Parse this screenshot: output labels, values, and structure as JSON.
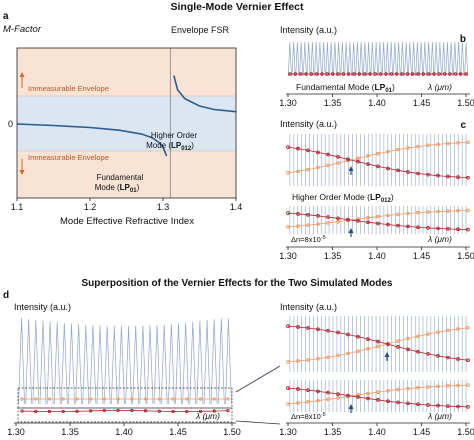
{
  "figure": {
    "title_top": "Single-Mode Vernier Effect",
    "title_bottom": "Superposition of the Vernier Effects for the Two Simulated Modes"
  },
  "colors": {
    "comb": "#8fa6cc",
    "envelope_line": "#2a5c8e",
    "red_curve": "#b0202b",
    "orange_curve": "#ee9c63",
    "shade_orange": "#f8e3d5",
    "shade_blue": "#dbe6f2",
    "arrow_orange": "#d2691e",
    "arrow_blue": "#1f4e8a"
  },
  "chart_data": [
    {
      "id": "a",
      "panel_label": "a",
      "type": "line",
      "ylabel": "M-Factor",
      "xlabel": "Mode Effective Refractive Index",
      "xlim": [
        1.1,
        1.4
      ],
      "x_ticks": [
        "1.1",
        "1.2",
        "1.3",
        "1.4"
      ],
      "y_ticks": [
        "0"
      ],
      "vline_x": 1.31,
      "vline_label": "Envelope FSR",
      "series": [
        {
          "x": [
            1.1,
            1.15,
            1.2,
            1.24,
            1.27,
            1.285,
            1.295,
            1.3,
            1.305
          ],
          "y": [
            0.0,
            -0.07,
            -0.16,
            -0.28,
            -0.45,
            -0.62,
            -0.85,
            -1.05,
            -1.45
          ]
        },
        {
          "x": [
            1.315,
            1.32,
            1.33,
            1.35,
            1.37,
            1.4
          ],
          "y": [
            2.2,
            1.55,
            1.15,
            0.82,
            0.66,
            0.56
          ]
        }
      ],
      "regions": [
        {
          "label": "Immeasurable Envelope",
          "arrow": "up"
        },
        {
          "label": "Immeasurable Envelope",
          "arrow": "down"
        }
      ],
      "annotations": [
        {
          "line1": "Higher Order",
          "line2": "Mode (",
          "mode": "LP",
          "sub": "012",
          "tail": ")"
        },
        {
          "line1": "Fundamental",
          "line2": "Mode (",
          "mode": "LP",
          "sub": "01",
          "tail": ")"
        }
      ]
    },
    {
      "id": "b",
      "panel_label": "b",
      "type": "line",
      "ylabel": "Intensity (a.u.)",
      "xlabel": "λ (μm)",
      "xlim": [
        1.3,
        1.5
      ],
      "x_ticks": [
        "1.30",
        "1.35",
        "1.40",
        "1.45",
        "1.50"
      ],
      "mode_label": {
        "text": "Fundamental Mode (",
        "mode": "LP",
        "sub": "01",
        "tail": ")"
      },
      "comb_peaks": 48
    },
    {
      "id": "c",
      "panel_label": "c",
      "type": "line",
      "ylabel": "Intensity (a.u.)",
      "xlabel": "λ (μm)",
      "xlim": [
        1.3,
        1.5
      ],
      "x_ticks": [
        "1.30",
        "1.35",
        "1.40",
        "1.45",
        "1.50"
      ],
      "mode_label": {
        "text": "Higher Order Mode (",
        "mode": "LP",
        "sub": "012",
        "tail": ")"
      },
      "delta_n": {
        "text": "Δn=8x10",
        "exp": "-5"
      },
      "top_crossing_x": 1.37,
      "bottom_crossing_x": 1.37
    },
    {
      "id": "d",
      "panel_label": "d",
      "type": "line",
      "ylabel": "Intensity (a.u.)",
      "xlabel": "λ (μm)",
      "xlim": [
        1.3,
        1.5
      ],
      "x_ticks": [
        "1.30",
        "1.35",
        "1.40",
        "1.45",
        "1.50"
      ],
      "comb_peaks": 30
    },
    {
      "id": "d-zoom",
      "type": "line",
      "ylabel": "Intensity (a.u.)",
      "xlabel": "λ (μm)",
      "xlim": [
        1.3,
        1.5
      ],
      "x_ticks": [
        "1.30",
        "1.35",
        "1.40",
        "1.45",
        "1.50"
      ],
      "delta_n": {
        "text": "Δn=8x10",
        "exp": "-5"
      },
      "top_crossing_x": 1.41,
      "bottom_crossing_x": 1.37
    }
  ]
}
